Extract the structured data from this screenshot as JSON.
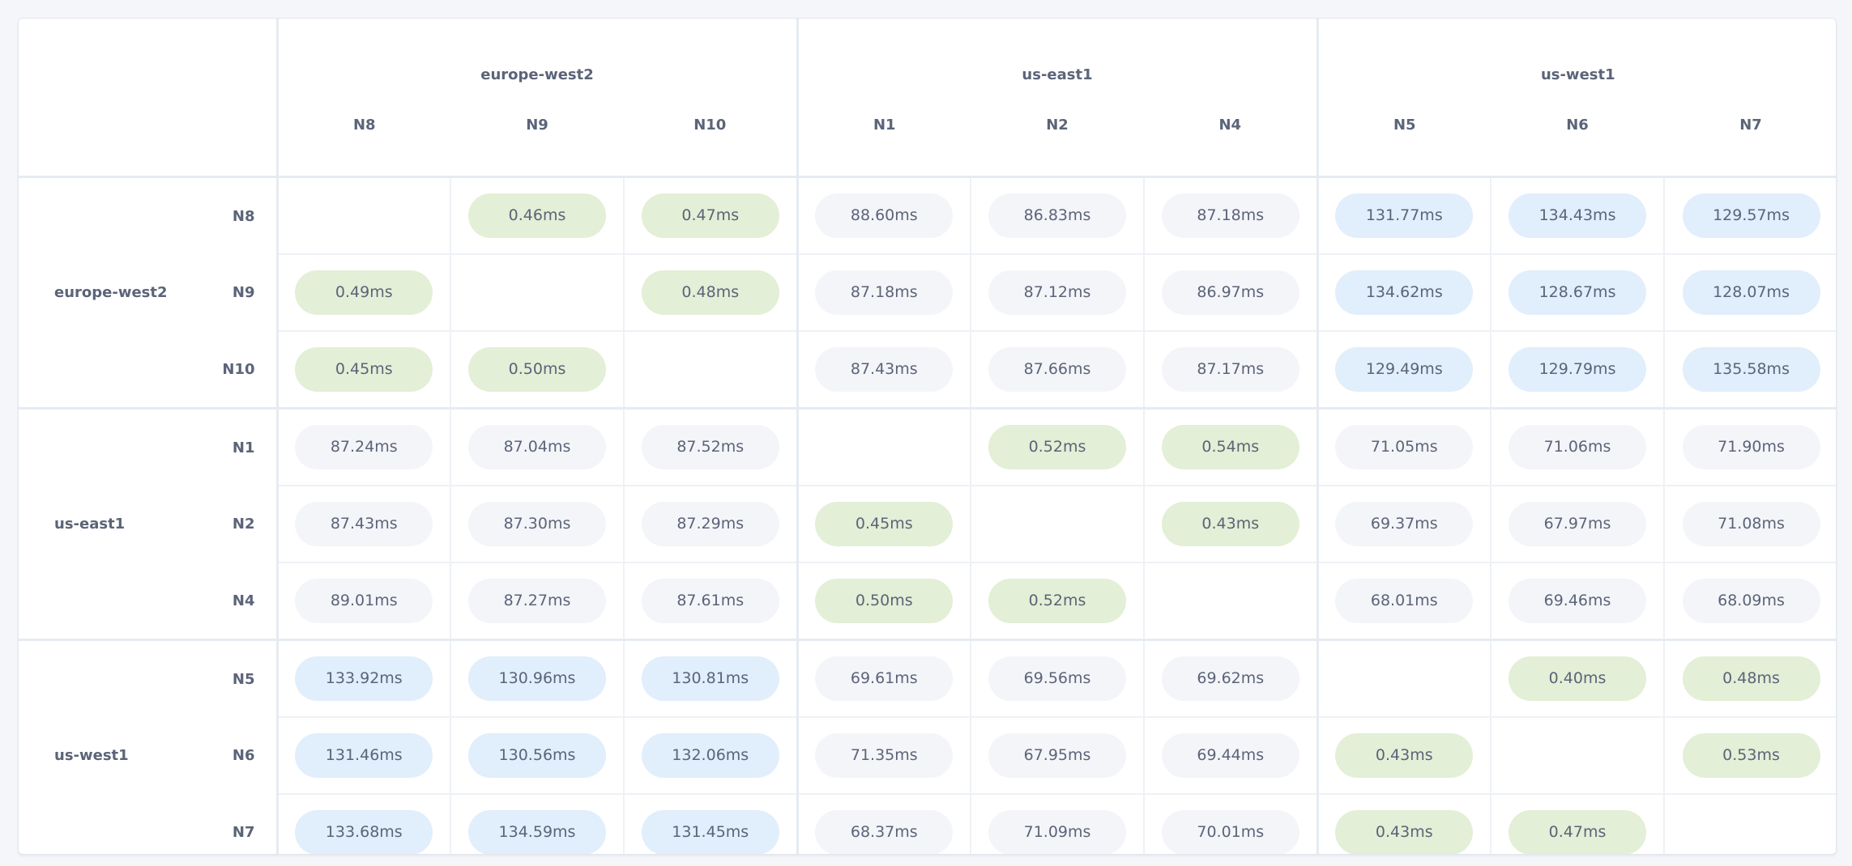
{
  "colors": {
    "local": "#e3efd6",
    "far": "#e1eefb",
    "mid": "#f4f5f9",
    "text": "#5b6478"
  },
  "groups": [
    {
      "name": "europe-west2",
      "nodes": [
        "N8",
        "N9",
        "N10"
      ]
    },
    {
      "name": "us-east1",
      "nodes": [
        "N1",
        "N2",
        "N4"
      ]
    },
    {
      "name": "us-west1",
      "nodes": [
        "N5",
        "N6",
        "N7"
      ]
    }
  ],
  "matrix": [
    [
      "",
      "0.46ms",
      "0.47ms",
      "88.60ms",
      "86.83ms",
      "87.18ms",
      "131.77ms",
      "134.43ms",
      "129.57ms"
    ],
    [
      "0.49ms",
      "",
      "0.48ms",
      "87.18ms",
      "87.12ms",
      "86.97ms",
      "134.62ms",
      "128.67ms",
      "128.07ms"
    ],
    [
      "0.45ms",
      "0.50ms",
      "",
      "87.43ms",
      "87.66ms",
      "87.17ms",
      "129.49ms",
      "129.79ms",
      "135.58ms"
    ],
    [
      "87.24ms",
      "87.04ms",
      "87.52ms",
      "",
      "0.52ms",
      "0.54ms",
      "71.05ms",
      "71.06ms",
      "71.90ms"
    ],
    [
      "87.43ms",
      "87.30ms",
      "87.29ms",
      "0.45ms",
      "",
      "0.43ms",
      "69.37ms",
      "67.97ms",
      "71.08ms"
    ],
    [
      "89.01ms",
      "87.27ms",
      "87.61ms",
      "0.50ms",
      "0.52ms",
      "",
      "68.01ms",
      "69.46ms",
      "68.09ms"
    ],
    [
      "133.92ms",
      "130.96ms",
      "130.81ms",
      "69.61ms",
      "69.56ms",
      "69.62ms",
      "",
      "0.40ms",
      "0.48ms"
    ],
    [
      "131.46ms",
      "130.56ms",
      "132.06ms",
      "71.35ms",
      "67.95ms",
      "69.44ms",
      "0.43ms",
      "",
      "0.53ms"
    ],
    [
      "133.68ms",
      "134.59ms",
      "131.45ms",
      "68.37ms",
      "71.09ms",
      "70.01ms",
      "0.43ms",
      "0.47ms",
      ""
    ]
  ]
}
